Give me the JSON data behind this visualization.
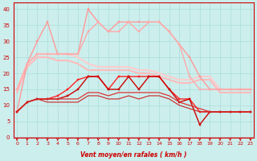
{
  "xlabel": "Vent moyen/en rafales ( km/h )",
  "xlim": [
    0,
    23
  ],
  "ylim": [
    0,
    42
  ],
  "yticks": [
    0,
    5,
    10,
    15,
    20,
    25,
    30,
    35,
    40
  ],
  "xticks": [
    0,
    1,
    2,
    3,
    4,
    5,
    6,
    7,
    8,
    9,
    10,
    11,
    12,
    13,
    14,
    15,
    16,
    17,
    18,
    19,
    20,
    21,
    22,
    23
  ],
  "bg_color": "#cceeed",
  "grid_color": "#aaddda",
  "lines": [
    {
      "y": [
        15,
        23,
        26,
        26,
        26,
        26,
        25,
        23,
        22,
        22,
        22,
        22,
        21,
        21,
        20,
        19,
        18,
        18,
        19,
        19,
        15,
        15,
        15,
        15
      ],
      "color": "#ffcccc",
      "lw": 1.5,
      "marker": false
    },
    {
      "y": [
        14,
        22,
        25,
        25,
        24,
        24,
        23,
        21,
        21,
        21,
        21,
        21,
        20,
        20,
        19,
        18,
        17,
        17,
        18,
        18,
        14,
        14,
        14,
        14
      ],
      "color": "#ffbbbb",
      "lw": 1.5,
      "marker": false
    },
    {
      "y": [
        8,
        23,
        30,
        36,
        26,
        26,
        26,
        40,
        36,
        33,
        36,
        36,
        36,
        36,
        36,
        33,
        29,
        25,
        19,
        15,
        15,
        15,
        15,
        15
      ],
      "color": "#ff9999",
      "lw": 1.0,
      "marker": true
    },
    {
      "y": [
        15,
        23,
        26,
        26,
        26,
        26,
        26,
        33,
        36,
        33,
        33,
        36,
        33,
        36,
        36,
        33,
        29,
        19,
        15,
        15,
        15,
        15,
        15,
        15
      ],
      "color": "#ffaaaa",
      "lw": 1.0,
      "marker": true
    },
    {
      "y": [
        8,
        11,
        12,
        12,
        13,
        15,
        18,
        19,
        19,
        15,
        19,
        19,
        19,
        19,
        19,
        15,
        12,
        12,
        8,
        8,
        8,
        8,
        8,
        8
      ],
      "color": "#ff2222",
      "lw": 1.0,
      "marker": true
    },
    {
      "y": [
        8,
        11,
        12,
        12,
        12,
        13,
        15,
        19,
        19,
        15,
        15,
        19,
        15,
        19,
        19,
        15,
        11,
        12,
        4,
        8,
        8,
        8,
        8,
        8
      ],
      "color": "#cc0000",
      "lw": 1.0,
      "marker": true
    },
    {
      "y": [
        8,
        11,
        12,
        12,
        12,
        12,
        12,
        14,
        14,
        13,
        14,
        14,
        14,
        14,
        14,
        13,
        11,
        10,
        9,
        8,
        8,
        8,
        8,
        8
      ],
      "color": "#dd3333",
      "lw": 0.9,
      "marker": false
    },
    {
      "y": [
        8,
        11,
        12,
        11,
        11,
        11,
        11,
        13,
        13,
        12,
        12,
        13,
        12,
        13,
        13,
        12,
        10,
        9,
        8,
        8,
        8,
        8,
        8,
        8
      ],
      "color": "#cc2222",
      "lw": 0.8,
      "marker": false
    }
  ]
}
